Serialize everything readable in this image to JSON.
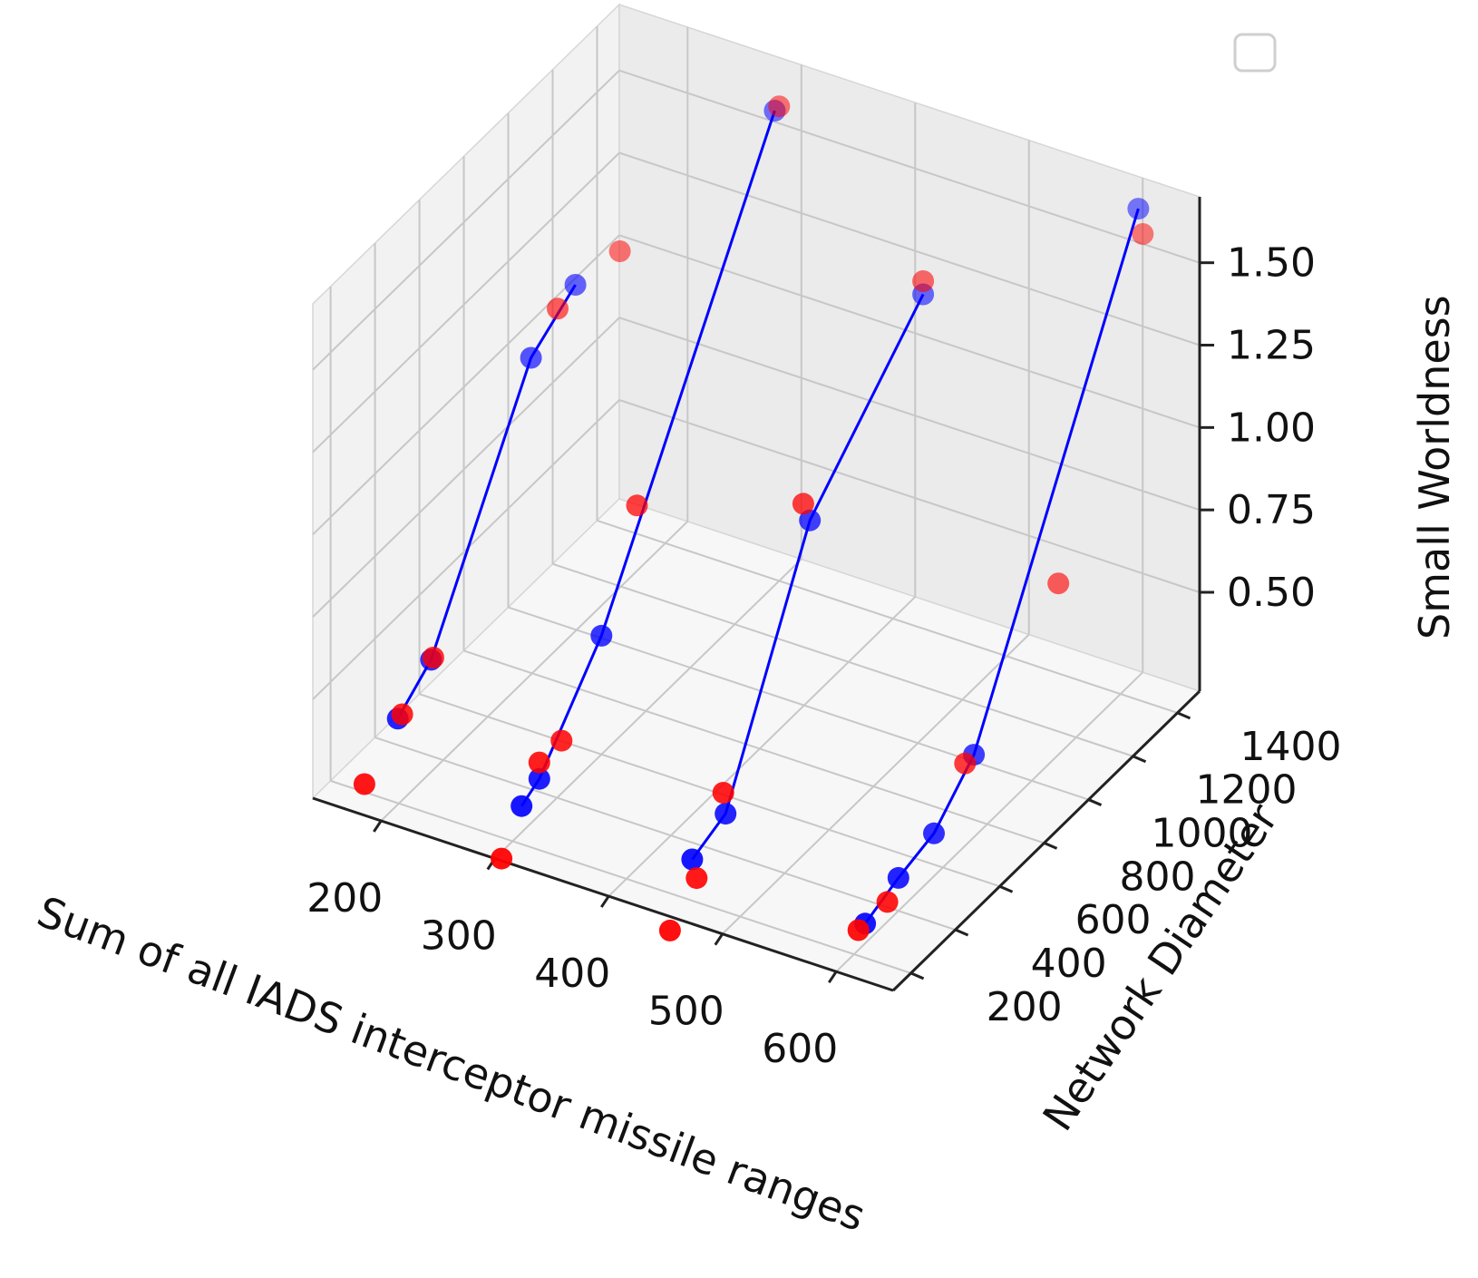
{
  "chart_data": {
    "type": "scatter",
    "projection": "3d",
    "xlabel": "Sum of all IADS interceptor missile ranges",
    "ylabel": "Network Diameter",
    "zlabel": "Small Worldness",
    "x_ticks": [
      "200",
      "300",
      "400",
      "500",
      "600"
    ],
    "y_ticks": [
      "200",
      "400",
      "600",
      "800",
      "1000",
      "1200",
      "1400"
    ],
    "z_ticks": [
      "0.50",
      "0.75",
      "1.00",
      "1.25",
      "1.50"
    ],
    "xlim": [
      140,
      650
    ],
    "ylim": [
      120,
      1500
    ],
    "zlim": [
      0.2,
      1.7
    ],
    "grid": true,
    "legend": "top-right (empty)",
    "colors": {
      "blue": "#0000ff",
      "red": "#ff0000"
    },
    "series": [
      {
        "color": "#0000ff",
        "marker": "point+line",
        "points": [
          {
            "x": 160,
            "y": 400,
            "z": 0.28
          },
          {
            "x": 160,
            "y": 550,
            "z": 0.36
          },
          {
            "x": 160,
            "y": 1000,
            "z": 0.98
          },
          {
            "x": 160,
            "y": 1200,
            "z": 1.07
          },
          {
            "x": 300,
            "y": 240,
            "z": 0.28
          },
          {
            "x": 300,
            "y": 320,
            "z": 0.31
          },
          {
            "x": 300,
            "y": 600,
            "z": 0.56
          },
          {
            "x": 300,
            "y": 1380,
            "z": 1.64
          },
          {
            "x": 450,
            "y": 240,
            "z": 0.29
          },
          {
            "x": 450,
            "y": 390,
            "z": 0.33
          },
          {
            "x": 450,
            "y": 770,
            "z": 0.97
          },
          {
            "x": 450,
            "y": 1280,
            "z": 1.32
          },
          {
            "x": 600,
            "y": 250,
            "z": 0.26
          },
          {
            "x": 600,
            "y": 400,
            "z": 0.3
          },
          {
            "x": 600,
            "y": 560,
            "z": 0.33
          },
          {
            "x": 600,
            "y": 740,
            "z": 0.45
          },
          {
            "x": 600,
            "y": 1480,
            "z": 1.62
          }
        ]
      },
      {
        "color": "#ff0000",
        "marker": "point",
        "points": [
          {
            "x": 160,
            "y": 250,
            "z": 0.18
          },
          {
            "x": 160,
            "y": 420,
            "z": 0.28
          },
          {
            "x": 160,
            "y": 560,
            "z": 0.36
          },
          {
            "x": 160,
            "y": 1120,
            "z": 1.05
          },
          {
            "x": 160,
            "y": 1400,
            "z": 1.04
          },
          {
            "x": 300,
            "y": 150,
            "z": 0.18
          },
          {
            "x": 300,
            "y": 320,
            "z": 0.36
          },
          {
            "x": 300,
            "y": 420,
            "z": 0.36
          },
          {
            "x": 300,
            "y": 760,
            "z": 0.85
          },
          {
            "x": 300,
            "y": 1400,
            "z": 1.64
          },
          {
            "x": 450,
            "y": 140,
            "z": 0.14
          },
          {
            "x": 450,
            "y": 260,
            "z": 0.22
          },
          {
            "x": 450,
            "y": 380,
            "z": 0.4
          },
          {
            "x": 450,
            "y": 740,
            "z": 1.04
          },
          {
            "x": 450,
            "y": 1280,
            "z": 1.36
          },
          {
            "x": 600,
            "y": 220,
            "z": 0.26
          },
          {
            "x": 600,
            "y": 350,
            "z": 0.26
          },
          {
            "x": 600,
            "y": 700,
            "z": 0.45
          },
          {
            "x": 600,
            "y": 1120,
            "z": 0.72
          },
          {
            "x": 600,
            "y": 1500,
            "z": 1.53
          }
        ]
      }
    ]
  }
}
